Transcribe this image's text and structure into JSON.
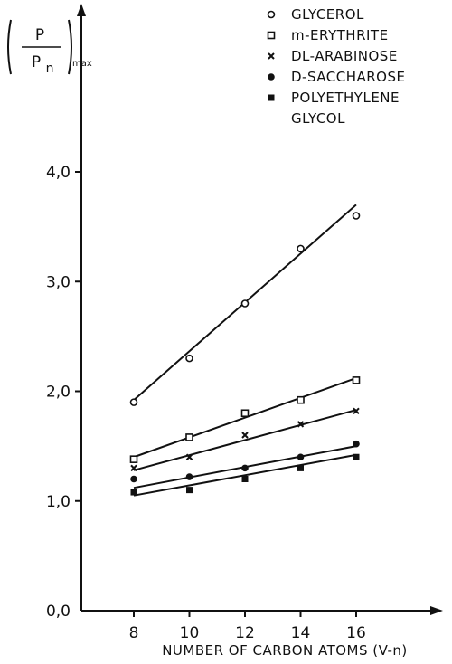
{
  "chart_data": {
    "type": "scatter",
    "xlabel": "NUMBER OF CARBON ATOMS (V-n)",
    "ylabel": {
      "numerator": "P",
      "denominator": "P",
      "denominator_sub": "n",
      "suffix": "max"
    },
    "x_ticks": [
      "8",
      "10",
      "12",
      "14",
      "16"
    ],
    "y_ticks": [
      "0,0",
      "1,0",
      "2,0",
      "3,0",
      "4,0"
    ],
    "xlim": [
      6,
      19
    ],
    "ylim": [
      0,
      5.5
    ],
    "grid": false,
    "legend_position": "top-right",
    "series": [
      {
        "name": "GLYCEROL",
        "marker": "open-circle",
        "x": [
          8,
          10,
          12,
          14,
          16
        ],
        "y": [
          1.9,
          2.3,
          2.8,
          3.3,
          3.6
        ],
        "fit": [
          1.92,
          3.7
        ]
      },
      {
        "name": "m-ERYTHRITE",
        "marker": "open-square",
        "x": [
          8,
          10,
          12,
          14,
          16
        ],
        "y": [
          1.38,
          1.58,
          1.8,
          1.92,
          2.1
        ],
        "fit": [
          1.4,
          2.12
        ]
      },
      {
        "name": "DL-ARABINOSE",
        "marker": "cross",
        "x": [
          8,
          10,
          12,
          14,
          16
        ],
        "y": [
          1.3,
          1.4,
          1.6,
          1.7,
          1.82
        ],
        "fit": [
          1.28,
          1.83
        ]
      },
      {
        "name": "D-SACCHAROSE",
        "marker": "filled-circle",
        "x": [
          8,
          10,
          12,
          14,
          16
        ],
        "y": [
          1.2,
          1.22,
          1.3,
          1.4,
          1.52
        ],
        "fit": [
          1.12,
          1.5
        ]
      },
      {
        "name": [
          "POLYETHYLENE",
          "GLYCOL"
        ],
        "marker": "filled-square",
        "x": [
          8,
          10,
          12,
          14,
          16
        ],
        "y": [
          1.08,
          1.1,
          1.2,
          1.3,
          1.4
        ],
        "fit": [
          1.05,
          1.42
        ]
      }
    ]
  }
}
